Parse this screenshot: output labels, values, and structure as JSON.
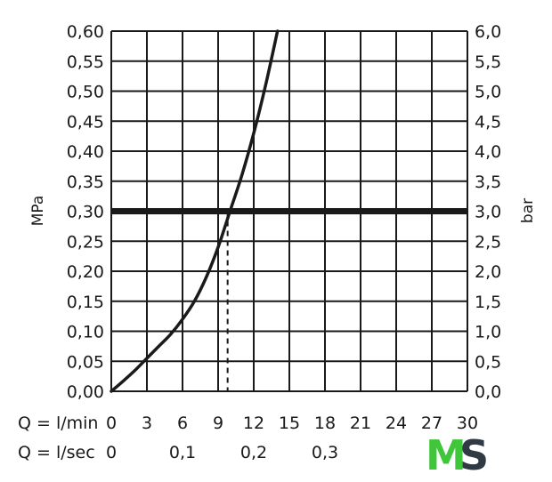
{
  "chart_data": {
    "type": "line",
    "ylabel_left": "MPa",
    "ylabel_right": "bar",
    "ylim": [
      0,
      0.6
    ],
    "ylim_right": [
      0,
      6.0
    ],
    "xlim": [
      0,
      30
    ],
    "grid": true,
    "y_ticks_left": [
      "0,00",
      "0,05",
      "0,10",
      "0,15",
      "0,20",
      "0,25",
      "0,30",
      "0,35",
      "0,40",
      "0,45",
      "0,50",
      "0,55",
      "0,60"
    ],
    "y_ticks_right": [
      "0,0",
      "0,5",
      "1,0",
      "1,5",
      "2,0",
      "2,5",
      "3,0",
      "3,5",
      "4,0",
      "4,5",
      "5,0",
      "5,5",
      "6,0"
    ],
    "x_ticks_min": [
      "0",
      "3",
      "6",
      "9",
      "12",
      "15",
      "18",
      "21",
      "24",
      "27",
      "30"
    ],
    "x_ticks_sec": [
      {
        "value": 0,
        "label": "0"
      },
      {
        "value": 0.1,
        "label": "0,1"
      },
      {
        "value": 0.2,
        "label": "0,2"
      },
      {
        "value": 0.3,
        "label": "0,3"
      }
    ],
    "x_row_label_min": "Q = l/min",
    "x_row_label_sec": "Q = l/sec",
    "series": [
      {
        "x": [
          0,
          1,
          2,
          3,
          4,
          5,
          6,
          7,
          8,
          9,
          10,
          11,
          12,
          13,
          14
        ],
        "y": [
          0,
          0.017,
          0.035,
          0.055,
          0.075,
          0.095,
          0.12,
          0.15,
          0.19,
          0.24,
          0.3,
          0.36,
          0.43,
          0.51,
          0.6
        ],
        "color": "#1a1a1a"
      }
    ],
    "reference_line": {
      "y": 0.3,
      "color": "#1a1a1a"
    },
    "reference_drop": {
      "x": 9.8,
      "y": 0.3
    }
  },
  "logo": {
    "m": "M",
    "s": "S",
    "m_color": "#3fc63a",
    "s_color": "#2f3a45"
  }
}
